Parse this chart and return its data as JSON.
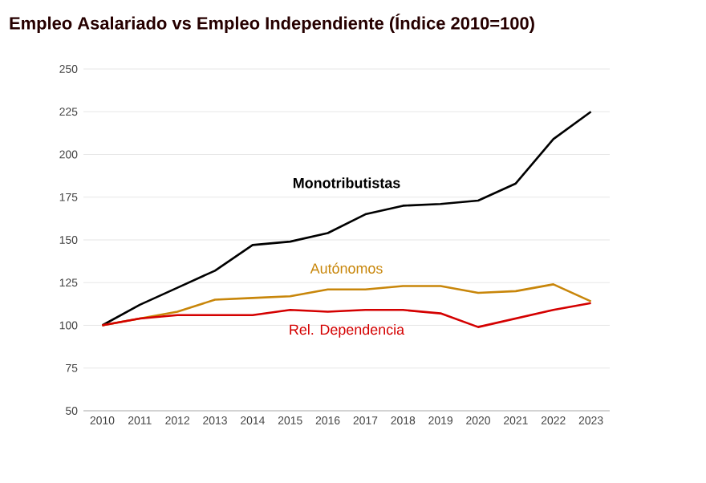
{
  "chart_data": {
    "type": "line",
    "title": "Empleo Asalariado vs Empleo Independiente (Índice 2010=100)",
    "categories": [
      "2010",
      "2011",
      "2012",
      "2013",
      "2014",
      "2015",
      "2016",
      "2017",
      "2018",
      "2019",
      "2020",
      "2021",
      "2022",
      "2023"
    ],
    "series": [
      {
        "name": "Monotributistas",
        "color": "#000000",
        "values": [
          100,
          112,
          122,
          132,
          147,
          149,
          154,
          165,
          170,
          171,
          173,
          183,
          209,
          225
        ]
      },
      {
        "name": "Autónomos",
        "color": "#c8860a",
        "values": [
          100,
          104,
          108,
          115,
          116,
          117,
          121,
          121,
          123,
          123,
          119,
          120,
          124,
          114
        ]
      },
      {
        "name": "Rel. Dependencia",
        "color": "#d40000",
        "values": [
          100,
          104,
          106,
          106,
          106,
          109,
          108,
          109,
          109,
          107,
          99,
          104,
          109,
          113
        ]
      }
    ],
    "ylim": [
      50,
      250
    ],
    "yticks": [
      50,
      75,
      100,
      125,
      150,
      175,
      200,
      225,
      250
    ],
    "grid": "y",
    "marker": "none",
    "line_style": "solid"
  }
}
